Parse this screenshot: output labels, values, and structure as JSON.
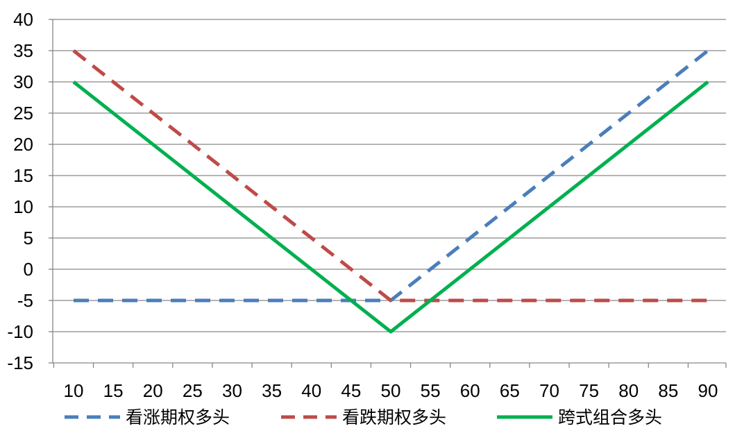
{
  "chart_data": {
    "type": "line",
    "x": [
      10,
      15,
      20,
      25,
      30,
      35,
      40,
      45,
      50,
      55,
      60,
      65,
      70,
      75,
      80,
      85,
      90
    ],
    "ylim": [
      -15,
      40
    ],
    "y_ticks": [
      40,
      35,
      30,
      25,
      20,
      15,
      10,
      5,
      0,
      -5,
      -10,
      -15
    ],
    "grid": "horizontal",
    "legend_position": "bottom",
    "series": [
      {
        "name": "看涨期权多头",
        "color": "#4a7ebb",
        "style": "dashed",
        "points": [
          [
            10,
            -5
          ],
          [
            50,
            -5
          ],
          [
            90,
            35
          ]
        ]
      },
      {
        "name": "看跌期权多头",
        "color": "#be4b48",
        "style": "dashed",
        "points": [
          [
            10,
            35
          ],
          [
            50,
            -5
          ],
          [
            90,
            -5
          ]
        ]
      },
      {
        "name": "跨式组合多头",
        "color": "#00b050",
        "style": "solid",
        "points": [
          [
            10,
            30
          ],
          [
            50,
            -10
          ],
          [
            90,
            30
          ]
        ]
      }
    ]
  }
}
